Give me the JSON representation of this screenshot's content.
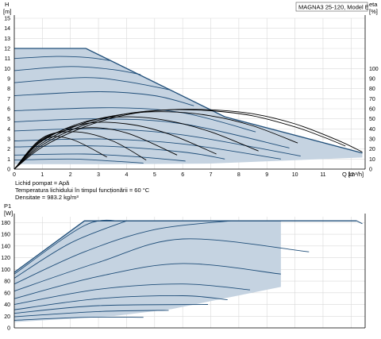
{
  "model_label": "MAGNA3 25-120, Model E",
  "info_lines": [
    "Lichid pompat = Apă",
    "Temperatura lichidului în timpul funcționării = 60 °C",
    "Densitate = 983.2  kg/m³"
  ],
  "colors": {
    "fill": "#c5d3e1",
    "curve": "#1f4e79",
    "eff_curve": "#000000",
    "grid": "#d9d9d9"
  },
  "chart_data": [
    {
      "type": "line",
      "panel": "head",
      "yunit_label": "H",
      "yunit": "[m]",
      "y2unit_label": "eta",
      "y2unit": "[%]",
      "xlabel": "Q [m³/h]",
      "xlim": [
        0,
        12.5
      ],
      "ylim": [
        0,
        15
      ],
      "y2lim": [
        0,
        150
      ],
      "x_ticks": [
        0,
        1,
        2,
        3,
        4,
        5,
        6,
        7,
        8,
        9,
        10,
        11,
        12
      ],
      "y_ticks": [
        0,
        1,
        2,
        3,
        4,
        5,
        6,
        7,
        8,
        9,
        10,
        11,
        12,
        13,
        14,
        15
      ],
      "y2_ticks": [
        0,
        10,
        20,
        30,
        40,
        50,
        60,
        70,
        80,
        90,
        100
      ],
      "operating_area": [
        [
          0,
          12
        ],
        [
          2.55,
          12
        ],
        [
          7.5,
          5.2
        ],
        [
          12.4,
          1.6
        ],
        [
          12.4,
          1.15
        ],
        [
          7,
          0.55
        ],
        [
          3.3,
          0.48
        ],
        [
          0,
          0.5
        ]
      ],
      "max_curve": {
        "x": [
          0,
          2.55,
          7.5,
          12.4
        ],
        "y": [
          12,
          12,
          5.2,
          1.6
        ]
      },
      "head_curves": [
        {
          "x": [
            0,
            1.5,
            2.6,
            3.4
          ],
          "y": [
            11,
            11.2,
            11.1,
            10.8
          ]
        },
        {
          "x": [
            0,
            2,
            3.5,
            4.5
          ],
          "y": [
            9.8,
            10.2,
            9.9,
            9.4
          ]
        },
        {
          "x": [
            0,
            2.5,
            4,
            5.5
          ],
          "y": [
            8.6,
            9.1,
            8.7,
            7.9
          ]
        },
        {
          "x": [
            0,
            3,
            5,
            6.4
          ],
          "y": [
            7.3,
            7.7,
            7.3,
            6.3
          ]
        },
        {
          "x": [
            0,
            3.5,
            6,
            8.6
          ],
          "y": [
            5.8,
            6.1,
            5.6,
            3.7
          ]
        },
        {
          "x": [
            0,
            3,
            6,
            9.8
          ],
          "y": [
            4.7,
            5,
            4.5,
            2.1
          ]
        },
        {
          "x": [
            0,
            3,
            6,
            10.2
          ],
          "y": [
            3.8,
            4,
            3.4,
            1.3
          ]
        },
        {
          "x": [
            0,
            3,
            6,
            9.5
          ],
          "y": [
            2.8,
            3,
            2.5,
            1
          ]
        },
        {
          "x": [
            0,
            3,
            6,
            7.5
          ],
          "y": [
            2.2,
            2.3,
            1.7,
            1
          ]
        },
        {
          "x": [
            0,
            2.5,
            4.5,
            6.1
          ],
          "y": [
            1.4,
            1.5,
            1.2,
            0.8
          ]
        },
        {
          "x": [
            0,
            2,
            3.5,
            4.6
          ],
          "y": [
            0.9,
            1.0,
            0.8,
            0.6
          ]
        }
      ],
      "eff_curves": [
        {
          "x": [
            0,
            1,
            2.5,
            4,
            5.5,
            7,
            8.5,
            10,
            11.5,
            12.4
          ],
          "y": [
            0,
            22,
            42,
            54,
            59,
            59,
            55,
            45,
            29,
            17
          ]
        },
        {
          "x": [
            0,
            1,
            2.5,
            4,
            5.5,
            7,
            8.5,
            10,
            11,
            11.8
          ],
          "y": [
            0,
            24,
            44,
            55,
            59,
            58,
            53,
            42,
            32,
            23
          ]
        },
        {
          "x": [
            0,
            1,
            2.5,
            4,
            5.5,
            7,
            8.5,
            10.1
          ],
          "y": [
            0,
            26,
            46,
            55,
            57,
            53,
            43,
            26
          ]
        },
        {
          "x": [
            0,
            1,
            2.5,
            4,
            5.5,
            7,
            8.7
          ],
          "y": [
            0,
            28,
            47,
            52,
            48,
            37,
            18
          ]
        },
        {
          "x": [
            0,
            1,
            2.5,
            4,
            5.5,
            7.2
          ],
          "y": [
            0,
            29,
            45,
            45,
            35,
            15
          ]
        },
        {
          "x": [
            0,
            1,
            2.5,
            4,
            5.8
          ],
          "y": [
            0,
            30,
            41,
            36,
            14
          ]
        },
        {
          "x": [
            0,
            1,
            2.2,
            3.5,
            4.7
          ],
          "y": [
            0,
            31,
            37,
            28,
            9
          ]
        },
        {
          "x": [
            0,
            1,
            2,
            3.3
          ],
          "y": [
            0,
            29,
            30,
            12
          ]
        }
      ]
    },
    {
      "type": "line",
      "panel": "power",
      "yunit_label": "P1",
      "yunit": "[W]",
      "xlim": [
        0,
        12.5
      ],
      "ylim": [
        0,
        190
      ],
      "y_ticks": [
        0,
        20,
        40,
        60,
        80,
        100,
        120,
        140,
        160,
        180
      ],
      "operating_area": [
        [
          0,
          95
        ],
        [
          2.5,
          183
        ],
        [
          9.5,
          183
        ],
        [
          9.5,
          70
        ],
        [
          5.6,
          32
        ],
        [
          3.5,
          20
        ],
        [
          0,
          10
        ]
      ],
      "max_line": {
        "x": [
          0,
          2.5,
          12.2
        ],
        "y": [
          95,
          183,
          183
        ]
      },
      "max_line_tail": {
        "x": [
          12.2,
          12.4
        ],
        "y": [
          183,
          178
        ]
      },
      "power_curves": [
        {
          "x": [
            0,
            2.5,
            3.8
          ],
          "y": [
            92,
            175,
            183
          ]
        },
        {
          "x": [
            0,
            2,
            4
          ],
          "y": [
            85,
            145,
            183
          ]
        },
        {
          "x": [
            0,
            2.5,
            5,
            7.7
          ],
          "y": [
            75,
            130,
            168,
            183
          ]
        },
        {
          "x": [
            0,
            3,
            6,
            10.5
          ],
          "y": [
            63,
            112,
            152,
            130
          ]
        },
        {
          "x": [
            0,
            3,
            6,
            9.5
          ],
          "y": [
            50,
            88,
            110,
            92
          ]
        },
        {
          "x": [
            0,
            3,
            6,
            8.4
          ],
          "y": [
            40,
            66,
            75,
            65
          ]
        },
        {
          "x": [
            0,
            3,
            6,
            7.6
          ],
          "y": [
            31,
            50,
            55,
            48
          ]
        },
        {
          "x": [
            0,
            3,
            6.9
          ],
          "y": [
            25,
            38,
            40
          ]
        },
        {
          "x": [
            0,
            3,
            5.5
          ],
          "y": [
            19,
            28,
            30
          ]
        },
        {
          "x": [
            0,
            2.5,
            4.6
          ],
          "y": [
            13,
            18,
            18
          ]
        }
      ]
    }
  ]
}
